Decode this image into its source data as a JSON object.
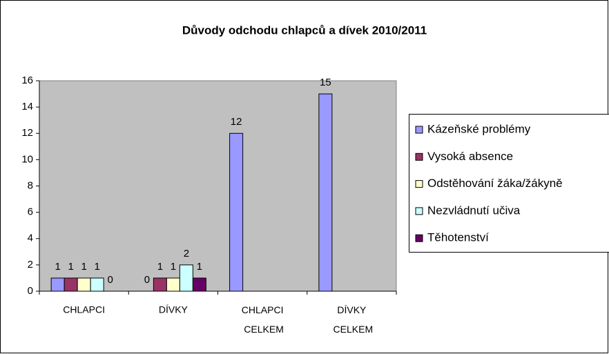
{
  "chart_data": {
    "type": "bar",
    "title": "Důvody odchodu chlapců a dívek 2010/2011",
    "categories": [
      "CHLAPCI",
      "DÍVKY",
      "CHLAPCI CELKEM",
      "DÍVKY CELKEM"
    ],
    "series": [
      {
        "name": "Kázeňské problémy",
        "color": "#9999ff",
        "values": [
          1,
          0,
          12,
          15
        ]
      },
      {
        "name": "Vysoká absence",
        "color": "#993366",
        "values": [
          1,
          1,
          null,
          null
        ]
      },
      {
        "name": "Odstěhování žáka/žákyně",
        "color": "#ffffcc",
        "values": [
          1,
          1,
          null,
          null
        ]
      },
      {
        "name": "Nezvládnutí učiva",
        "color": "#ccffff",
        "values": [
          1,
          2,
          null,
          null
        ]
      },
      {
        "name": "Těhotenství",
        "color": "#660066",
        "values": [
          0,
          1,
          null,
          null
        ]
      }
    ],
    "ylim": [
      0,
      16
    ],
    "yticks": [
      0,
      2,
      4,
      6,
      8,
      10,
      12,
      14,
      16
    ],
    "grid": false,
    "legend": "right"
  }
}
